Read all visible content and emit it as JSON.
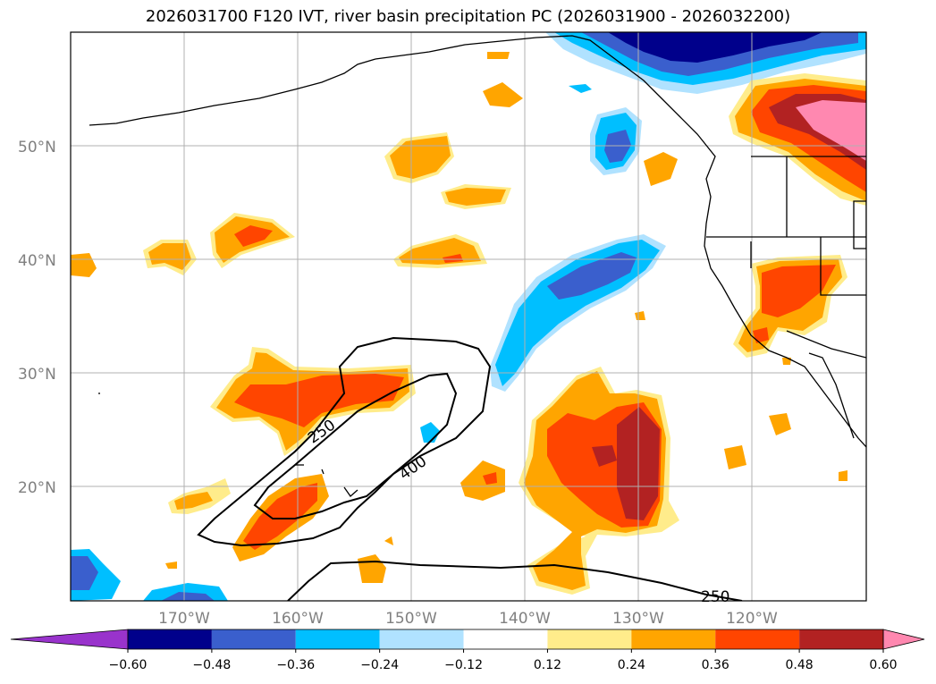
{
  "title": "2026031700 F120 IVT, river basin precipitation PC (2026031900 - 2026032200)",
  "lon_ticks": [
    "170°W",
    "160°W",
    "150°W",
    "140°W",
    "130°W",
    "120°W"
  ],
  "lat_ticks": [
    "50°N",
    "40°N",
    "30°N",
    "20°N"
  ],
  "contour_labels": [
    "250",
    "400",
    "250"
  ],
  "colorbar": {
    "ticks": [
      "−0.60",
      "−0.48",
      "−0.36",
      "−0.24",
      "−0.12",
      "0.12",
      "0.24",
      "0.36",
      "0.48",
      "0.60"
    ],
    "colors": [
      "#9933cc",
      "#00008b",
      "#3a5fcd",
      "#00bfff",
      "#b0e2ff",
      "#ffffff",
      "#ffec8b",
      "#ffa500",
      "#ff4500",
      "#b22222",
      "#ff88b0"
    ]
  },
  "colors": {
    "grid": "#b0b0b0",
    "coast": "#000000"
  }
}
